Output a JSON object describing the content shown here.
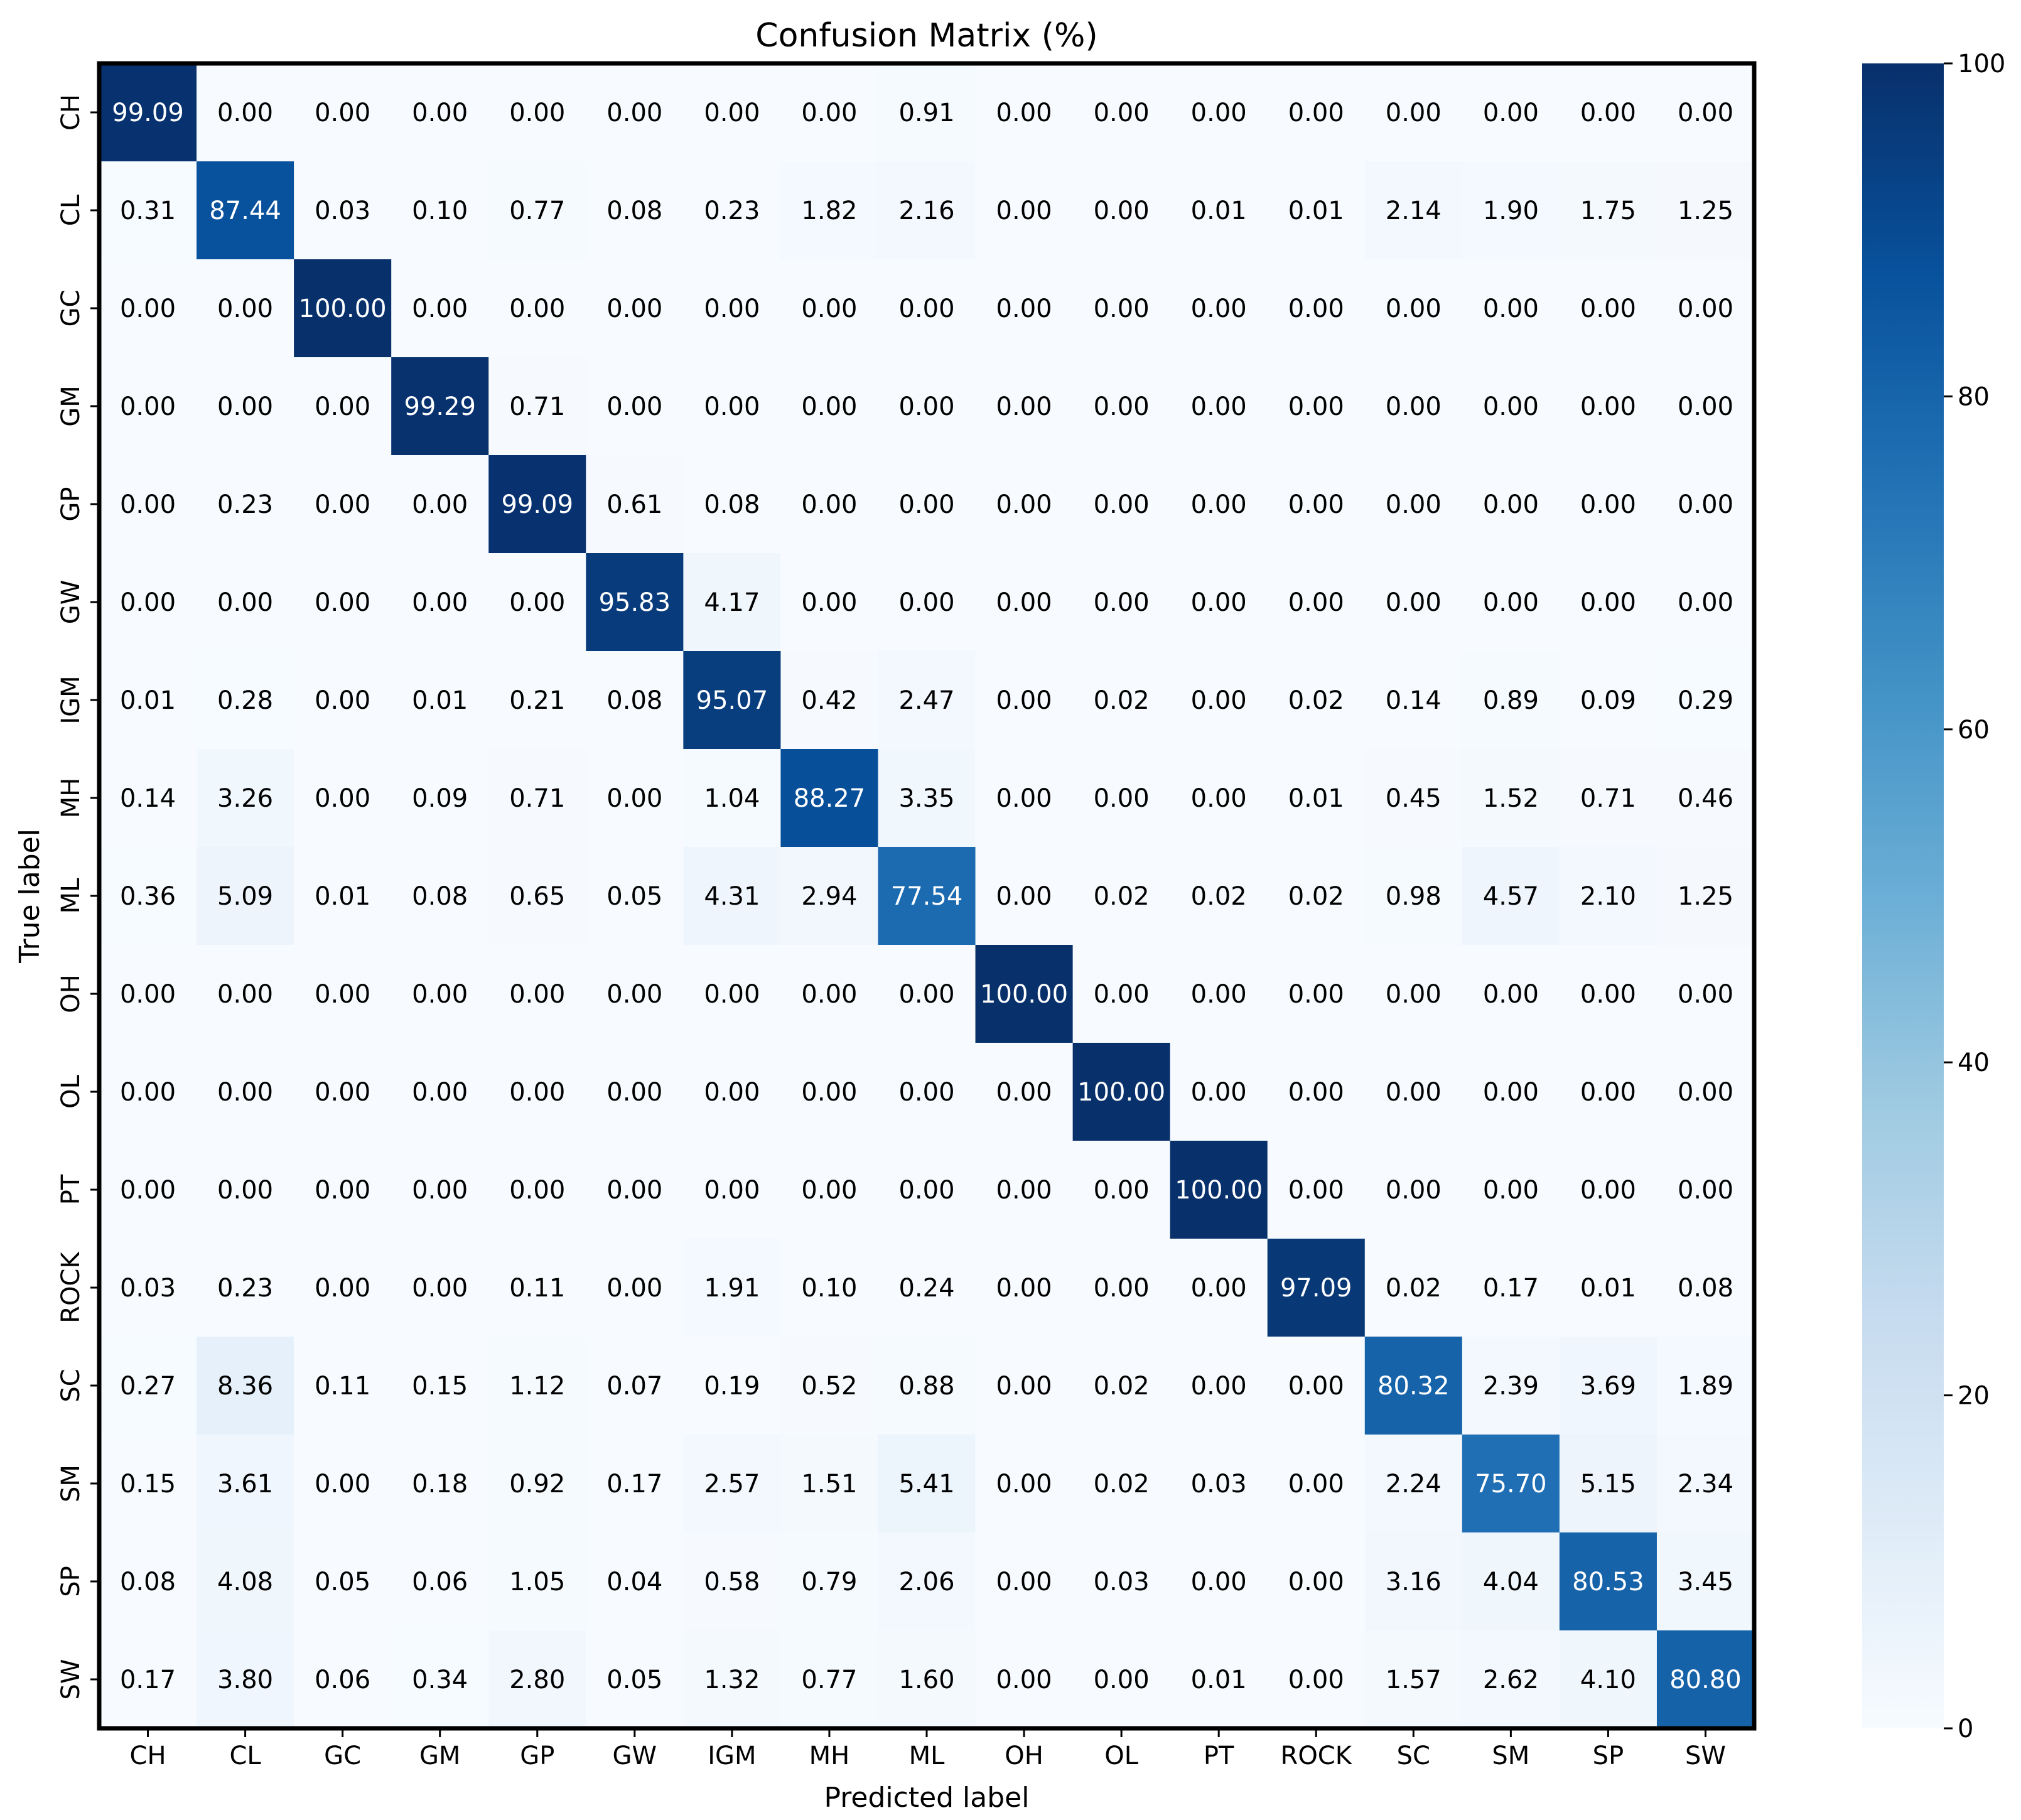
{
  "chart_data": {
    "type": "heatmap",
    "title": "Confusion Matrix (%)",
    "xlabel": "Predicted label",
    "ylabel": "True label",
    "x_categories": [
      "CH",
      "CL",
      "GC",
      "GM",
      "GP",
      "GW",
      "IGM",
      "MH",
      "ML",
      "OH",
      "OL",
      "PT",
      "ROCK",
      "SC",
      "SM",
      "SP",
      "SW"
    ],
    "y_categories": [
      "CH",
      "CL",
      "GC",
      "GM",
      "GP",
      "GW",
      "IGM",
      "MH",
      "ML",
      "OH",
      "OL",
      "PT",
      "ROCK",
      "SC",
      "SM",
      "SP",
      "SW"
    ],
    "values": [
      [
        "99.09",
        "0.00",
        "0.00",
        "0.00",
        "0.00",
        "0.00",
        "0.00",
        "0.00",
        "0.91",
        "0.00",
        "0.00",
        "0.00",
        "0.00",
        "0.00",
        "0.00",
        "0.00",
        "0.00"
      ],
      [
        "0.31",
        "87.44",
        "0.03",
        "0.10",
        "0.77",
        "0.08",
        "0.23",
        "1.82",
        "2.16",
        "0.00",
        "0.00",
        "0.01",
        "0.01",
        "2.14",
        "1.90",
        "1.75",
        "1.25"
      ],
      [
        "0.00",
        "0.00",
        "100.00",
        "0.00",
        "0.00",
        "0.00",
        "0.00",
        "0.00",
        "0.00",
        "0.00",
        "0.00",
        "0.00",
        "0.00",
        "0.00",
        "0.00",
        "0.00",
        "0.00"
      ],
      [
        "0.00",
        "0.00",
        "0.00",
        "99.29",
        "0.71",
        "0.00",
        "0.00",
        "0.00",
        "0.00",
        "0.00",
        "0.00",
        "0.00",
        "0.00",
        "0.00",
        "0.00",
        "0.00",
        "0.00"
      ],
      [
        "0.00",
        "0.23",
        "0.00",
        "0.00",
        "99.09",
        "0.61",
        "0.08",
        "0.00",
        "0.00",
        "0.00",
        "0.00",
        "0.00",
        "0.00",
        "0.00",
        "0.00",
        "0.00",
        "0.00"
      ],
      [
        "0.00",
        "0.00",
        "0.00",
        "0.00",
        "0.00",
        "95.83",
        "4.17",
        "0.00",
        "0.00",
        "0.00",
        "0.00",
        "0.00",
        "0.00",
        "0.00",
        "0.00",
        "0.00",
        "0.00"
      ],
      [
        "0.01",
        "0.28",
        "0.00",
        "0.01",
        "0.21",
        "0.08",
        "95.07",
        "0.42",
        "2.47",
        "0.00",
        "0.02",
        "0.00",
        "0.02",
        "0.14",
        "0.89",
        "0.09",
        "0.29"
      ],
      [
        "0.14",
        "3.26",
        "0.00",
        "0.09",
        "0.71",
        "0.00",
        "1.04",
        "88.27",
        "3.35",
        "0.00",
        "0.00",
        "0.00",
        "0.01",
        "0.45",
        "1.52",
        "0.71",
        "0.46"
      ],
      [
        "0.36",
        "5.09",
        "0.01",
        "0.08",
        "0.65",
        "0.05",
        "4.31",
        "2.94",
        "77.54",
        "0.00",
        "0.02",
        "0.02",
        "0.02",
        "0.98",
        "4.57",
        "2.10",
        "1.25"
      ],
      [
        "0.00",
        "0.00",
        "0.00",
        "0.00",
        "0.00",
        "0.00",
        "0.00",
        "0.00",
        "0.00",
        "100.00",
        "0.00",
        "0.00",
        "0.00",
        "0.00",
        "0.00",
        "0.00",
        "0.00"
      ],
      [
        "0.00",
        "0.00",
        "0.00",
        "0.00",
        "0.00",
        "0.00",
        "0.00",
        "0.00",
        "0.00",
        "0.00",
        "100.00",
        "0.00",
        "0.00",
        "0.00",
        "0.00",
        "0.00",
        "0.00"
      ],
      [
        "0.00",
        "0.00",
        "0.00",
        "0.00",
        "0.00",
        "0.00",
        "0.00",
        "0.00",
        "0.00",
        "0.00",
        "0.00",
        "100.00",
        "0.00",
        "0.00",
        "0.00",
        "0.00",
        "0.00"
      ],
      [
        "0.03",
        "0.23",
        "0.00",
        "0.00",
        "0.11",
        "0.00",
        "1.91",
        "0.10",
        "0.24",
        "0.00",
        "0.00",
        "0.00",
        "97.09",
        "0.02",
        "0.17",
        "0.01",
        "0.08"
      ],
      [
        "0.27",
        "8.36",
        "0.11",
        "0.15",
        "1.12",
        "0.07",
        "0.19",
        "0.52",
        "0.88",
        "0.00",
        "0.02",
        "0.00",
        "0.00",
        "80.32",
        "2.39",
        "3.69",
        "1.89"
      ],
      [
        "0.15",
        "3.61",
        "0.00",
        "0.18",
        "0.92",
        "0.17",
        "2.57",
        "1.51",
        "5.41",
        "0.00",
        "0.02",
        "0.03",
        "0.00",
        "2.24",
        "75.70",
        "5.15",
        "2.34"
      ],
      [
        "0.08",
        "4.08",
        "0.05",
        "0.06",
        "1.05",
        "0.04",
        "0.58",
        "0.79",
        "2.06",
        "0.00",
        "0.03",
        "0.00",
        "0.00",
        "3.16",
        "4.04",
        "80.53",
        "3.45"
      ],
      [
        "0.17",
        "3.80",
        "0.06",
        "0.34",
        "2.80",
        "0.05",
        "1.32",
        "0.77",
        "1.60",
        "0.00",
        "0.00",
        "0.01",
        "0.00",
        "1.57",
        "2.62",
        "4.10",
        "80.80"
      ]
    ],
    "colorbar": {
      "colormap": "Blues",
      "range": [
        0,
        100
      ],
      "ticks": [
        "0",
        "20",
        "40",
        "60",
        "80",
        "100"
      ]
    },
    "grid": false
  }
}
